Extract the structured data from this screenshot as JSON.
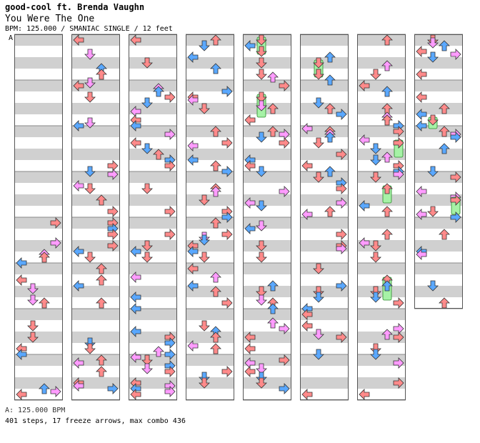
{
  "header": {
    "artist": "good-cool ft. Brenda Vaughn",
    "title": "You Were The One",
    "info": "BPM: 125.000 / SMANIAC SINGLE / 12 feet"
  },
  "bpm_marker": "A",
  "footer": {
    "bpm_line": "A: 125.000 BPM",
    "stats_line": "401 steps, 17 freeze arrows, max combo 436"
  },
  "chart_data": {
    "type": "step-chart",
    "bpm": 125.0,
    "difficulty": "SMANIAC",
    "style": "SINGLE",
    "feet": 12,
    "steps": 401,
    "freeze_arrows": 17,
    "max_combo": 436,
    "measures_per_column": 8,
    "columns": 8,
    "total_measures": 62,
    "lanes": [
      "left",
      "down",
      "up",
      "right"
    ],
    "colors": {
      "quarter": "#ff8a8a",
      "eighth": "#5aa8ff",
      "sixteenth": "#ff9cff",
      "freeze": "#a6f2a6",
      "stripe": "#d0d0d0"
    }
  }
}
